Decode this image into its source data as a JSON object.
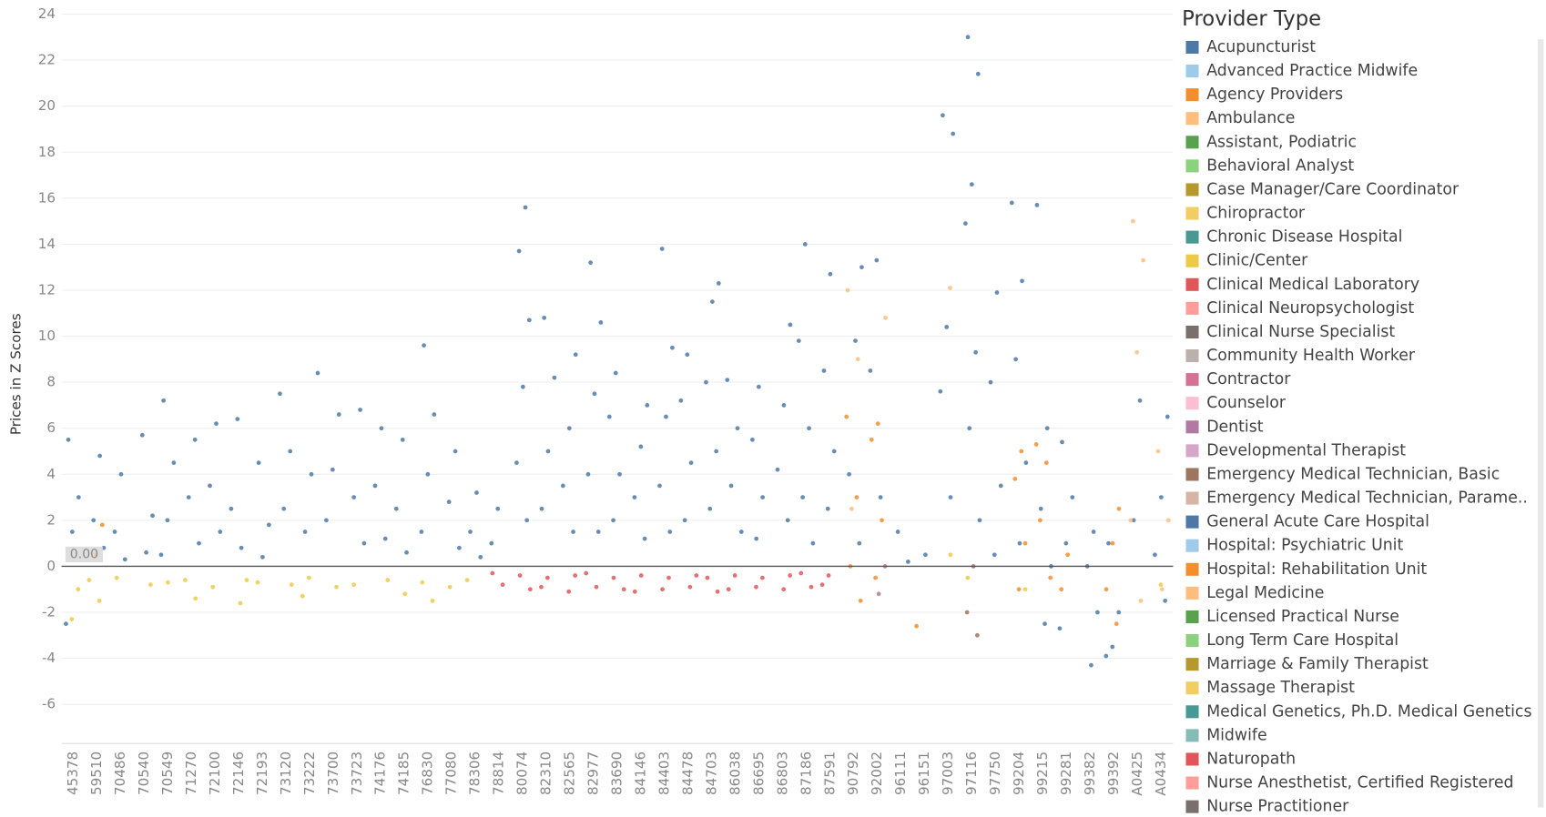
{
  "chart_data": {
    "type": "scatter",
    "y_label": "Prices in Z Scores",
    "legend_title": "Provider Type",
    "reference_line": {
      "value": 0,
      "label": "0.00"
    },
    "categories": [
      "45378",
      "59510",
      "70486",
      "70540",
      "70549",
      "71270",
      "72100",
      "72146",
      "72193",
      "73120",
      "73222",
      "73700",
      "73723",
      "74176",
      "74185",
      "76830",
      "77080",
      "78306",
      "78814",
      "80074",
      "82310",
      "82565",
      "82977",
      "83690",
      "84146",
      "84403",
      "84478",
      "84703",
      "86038",
      "86695",
      "86803",
      "87186",
      "87591",
      "90792",
      "92002",
      "96111",
      "96151",
      "97003",
      "97116",
      "97750",
      "99204",
      "99215",
      "99281",
      "99382",
      "99392",
      "A0425",
      "A0434"
    ],
    "ylim": [
      -7.7,
      24.4
    ],
    "yticks": [
      -6,
      -4,
      -2,
      0,
      2,
      4,
      6,
      8,
      10,
      12,
      14,
      16,
      18,
      20,
      22,
      24
    ],
    "grid": true,
    "series": [
      {
        "name": "Acupuncturist",
        "color": "#4e79a7",
        "x": [],
        "y": []
      },
      {
        "name": "Advanced Practice Midwife",
        "color": "#a0cbe8",
        "x": [],
        "y": []
      },
      {
        "name": "Agency Providers",
        "color": "#f28e2b",
        "x": [],
        "y": []
      },
      {
        "name": "Ambulance",
        "color": "#ffbe7d",
        "x": [],
        "y": []
      },
      {
        "name": "Assistant, Podiatric",
        "color": "#59a14f",
        "x": [],
        "y": []
      },
      {
        "name": "Behavioral Analyst",
        "color": "#8cd17d",
        "x": [],
        "y": []
      },
      {
        "name": "Case Manager/Care Coordinator",
        "color": "#b6992d",
        "x": [],
        "y": []
      },
      {
        "name": "Chiropractor",
        "color": "#f1ce63",
        "x": [],
        "y": []
      },
      {
        "name": "Chronic Disease Hospital",
        "color": "#499894",
        "x": [],
        "y": []
      },
      {
        "name": "Clinic/Center",
        "color": "#edc948",
        "x": [
          "45378",
          "45378",
          "59510",
          "59510",
          "70486",
          "70540",
          "70549",
          "71270",
          "71270",
          "72100",
          "72146",
          "72146",
          "72193",
          "73120",
          "73222",
          "73222",
          "73700",
          "73723",
          "74176",
          "74185",
          "76830",
          "76830",
          "77080",
          "78306",
          "97003",
          "97116",
          "99204",
          "A0434"
        ],
        "y": [
          -1,
          -2.3,
          -0.6,
          -1.5,
          -0.5,
          -0.8,
          -0.7,
          -0.6,
          -1.4,
          -0.9,
          -0.6,
          -1.6,
          -0.7,
          -0.8,
          -0.5,
          -1.3,
          -0.9,
          -0.8,
          -0.6,
          -1.2,
          -0.7,
          -1.5,
          -0.9,
          -0.6,
          0.5,
          -0.5,
          -1,
          -0.8
        ]
      },
      {
        "name": "Clinical Medical Laboratory",
        "color": "#e15759",
        "x": [
          "78814",
          "78814",
          "80074",
          "80074",
          "82310",
          "82310",
          "82565",
          "82565",
          "82977",
          "82977",
          "83690",
          "83690",
          "84146",
          "84146",
          "84403",
          "84403",
          "84478",
          "84478",
          "84703",
          "84703",
          "86038",
          "86038",
          "86695",
          "86695",
          "86803",
          "86803",
          "87186",
          "87186",
          "87591",
          "87591"
        ],
        "y": [
          -0.3,
          -0.8,
          -0.4,
          -1,
          -0.5,
          -0.9,
          -0.4,
          -1.1,
          -0.3,
          -0.9,
          -0.5,
          -1,
          -0.4,
          -1.1,
          -0.5,
          -1,
          -0.4,
          -0.9,
          -0.5,
          -1.1,
          -0.4,
          -1,
          -0.5,
          -0.9,
          -0.4,
          -1,
          -0.3,
          -0.9,
          -0.4,
          -0.8
        ]
      },
      {
        "name": "Clinical Neuropsychologist",
        "color": "#ff9d9a",
        "x": [],
        "y": []
      },
      {
        "name": "Clinical Nurse Specialist",
        "color": "#79706e",
        "x": [],
        "y": []
      },
      {
        "name": "Community Health Worker",
        "color": "#bab0ac",
        "x": [],
        "y": []
      },
      {
        "name": "Contractor",
        "color": "#d37295",
        "x": [],
        "y": []
      },
      {
        "name": "Counselor",
        "color": "#fabfd2",
        "x": [],
        "y": []
      },
      {
        "name": "Dentist",
        "color": "#b07aa1",
        "x": [
          "92002",
          "92002"
        ],
        "y": [
          0,
          -1.2
        ]
      },
      {
        "name": "Developmental Therapist",
        "color": "#d4a6c8",
        "x": [],
        "y": []
      },
      {
        "name": "Emergency Medical Technician, Basic",
        "color": "#9d7660",
        "x": [
          "97116",
          "97116",
          "97116"
        ],
        "y": [
          0,
          -2,
          -3
        ]
      },
      {
        "name": "Emergency Medical Technician, Parame..",
        "color": "#d7b5a6",
        "x": [],
        "y": []
      },
      {
        "name": "General Acute Care Hospital",
        "color": "#4e79a7",
        "x": [
          "45378",
          "45378",
          "45378",
          "45378",
          "59510",
          "59510",
          "59510",
          "70486",
          "70486",
          "70486",
          "70540",
          "70540",
          "70540",
          "70549",
          "70549",
          "70549",
          "70549",
          "71270",
          "71270",
          "71270",
          "72100",
          "72100",
          "72100",
          "72146",
          "72146",
          "72146",
          "72193",
          "72193",
          "72193",
          "73120",
          "73120",
          "73120",
          "73222",
          "73222",
          "73222",
          "73700",
          "73700",
          "73700",
          "73723",
          "73723",
          "73723",
          "74176",
          "74176",
          "74176",
          "74185",
          "74185",
          "74185",
          "76830",
          "76830",
          "76830",
          "76830",
          "77080",
          "77080",
          "77080",
          "78306",
          "78306",
          "78306",
          "78814",
          "78814",
          "80074",
          "80074",
          "80074",
          "80074",
          "80074",
          "80074",
          "82310",
          "82310",
          "82310",
          "82310",
          "82565",
          "82565",
          "82565",
          "82565",
          "82977",
          "82977",
          "82977",
          "82977",
          "82977",
          "83690",
          "83690",
          "83690",
          "83690",
          "84146",
          "84146",
          "84146",
          "84146",
          "84403",
          "84403",
          "84403",
          "84403",
          "84403",
          "84478",
          "84478",
          "84478",
          "84478",
          "84703",
          "84703",
          "84703",
          "84703",
          "84703",
          "86038",
          "86038",
          "86038",
          "86038",
          "86695",
          "86695",
          "86695",
          "86695",
          "86803",
          "86803",
          "86803",
          "86803",
          "87186",
          "87186",
          "87186",
          "87186",
          "87186",
          "87591",
          "87591",
          "87591",
          "87591",
          "90792",
          "90792",
          "90792",
          "90792",
          "92002",
          "92002",
          "92002",
          "96111",
          "96111",
          "96151",
          "97003",
          "97003",
          "97003",
          "97003",
          "97003",
          "97116",
          "97116",
          "97116",
          "97116",
          "97116",
          "97116",
          "97116",
          "97750",
          "97750",
          "97750",
          "97750",
          "99204",
          "99204",
          "99204",
          "99204",
          "99204",
          "99215",
          "99215",
          "99215",
          "99215",
          "99215",
          "99281",
          "99281",
          "99281",
          "99281",
          "99382",
          "99382",
          "99382",
          "99382",
          "99392",
          "99392",
          "99392",
          "99392",
          "A0425",
          "A0425",
          "A0434",
          "A0434",
          "A0434",
          "A0434"
        ],
        "y": [
          5.5,
          3,
          1.5,
          -2.5,
          4.8,
          2,
          0.8,
          4,
          1.5,
          0.3,
          5.7,
          2.2,
          0.6,
          7.2,
          4.5,
          2,
          0.5,
          5.5,
          3,
          1,
          6.2,
          3.5,
          1.5,
          6.4,
          2.5,
          0.8,
          4.5,
          1.8,
          0.4,
          7.5,
          5,
          2.5,
          8.4,
          4,
          1.5,
          6.6,
          4.2,
          2,
          6.8,
          3,
          1,
          6,
          3.5,
          1.2,
          5.5,
          2.5,
          0.6,
          9.6,
          6.6,
          4,
          1.5,
          5,
          2.8,
          0.8,
          3.2,
          1.5,
          0.4,
          2.5,
          1,
          15.6,
          13.7,
          10.7,
          7.8,
          4.5,
          2,
          10.8,
          8.2,
          5,
          2.5,
          9.2,
          6,
          3.5,
          1.5,
          13.2,
          10.6,
          7.5,
          4,
          1.5,
          8.4,
          6.5,
          4,
          2,
          7,
          5.2,
          3,
          1.2,
          13.8,
          9.5,
          6.5,
          3.5,
          1.5,
          9.2,
          7.2,
          4.5,
          2,
          12.3,
          11.5,
          8,
          5,
          2.5,
          8.1,
          6,
          3.5,
          1.5,
          7.8,
          5.5,
          3,
          1.2,
          10.5,
          7,
          4.2,
          2,
          14,
          9.8,
          6,
          3,
          1,
          12.7,
          8.5,
          5,
          2.5,
          13,
          9.8,
          4,
          1,
          13.3,
          8.5,
          3,
          1.5,
          0.2,
          0.5,
          19.6,
          18.8,
          10.4,
          7.6,
          3,
          23,
          21.4,
          16.6,
          14.9,
          9.3,
          6,
          2,
          11.9,
          8,
          3.5,
          0.5,
          15.8,
          12.4,
          9,
          4.5,
          1,
          15.7,
          6,
          2.5,
          0,
          -2.5,
          5.4,
          3,
          1,
          -2.7,
          1.5,
          0,
          -2,
          -4.3,
          1,
          -2,
          -3.5,
          -3.9,
          7.2,
          2,
          6.5,
          3,
          0.5,
          -1.5
        ]
      },
      {
        "name": "Hospital: Psychiatric Unit",
        "color": "#a0cbe8",
        "x": [],
        "y": []
      },
      {
        "name": "Hospital: Rehabilitation Unit",
        "color": "#f28e2b",
        "x": [
          "59510",
          "59510",
          "90792",
          "90792",
          "90792",
          "90792",
          "92002",
          "92002",
          "92002",
          "92002",
          "96151",
          "99204",
          "99204",
          "99204",
          "99204",
          "99215",
          "99215",
          "99215",
          "99215",
          "99281",
          "99281",
          "99392",
          "99392",
          "99392",
          "99392"
        ],
        "y": [
          1.8,
          0.5,
          6.5,
          3,
          0,
          -1.5,
          6.2,
          5.5,
          2,
          -0.5,
          -2.6,
          5,
          3.8,
          1,
          -1,
          5.3,
          4.5,
          2,
          -0.5,
          0.5,
          -1,
          2.5,
          1,
          -1,
          -2.5
        ]
      },
      {
        "name": "Legal Medicine",
        "color": "#ffbe7d",
        "x": [
          "90792",
          "90792",
          "90792",
          "92002",
          "97003",
          "A0425",
          "A0425",
          "A0425",
          "A0425",
          "A0425",
          "A0434",
          "A0434",
          "A0434"
        ],
        "y": [
          12,
          9,
          2.5,
          10.8,
          12.1,
          15,
          13.3,
          9.3,
          2,
          -1.5,
          5,
          2,
          -1
        ]
      },
      {
        "name": "Licensed Practical Nurse",
        "color": "#59a14f",
        "x": [],
        "y": []
      },
      {
        "name": "Long Term Care Hospital",
        "color": "#8cd17d",
        "x": [],
        "y": []
      },
      {
        "name": "Marriage & Family Therapist",
        "color": "#b6992d",
        "x": [],
        "y": []
      },
      {
        "name": "Massage Therapist",
        "color": "#f1ce63",
        "x": [],
        "y": []
      },
      {
        "name": "Medical Genetics, Ph.D. Medical Genetics",
        "color": "#499894",
        "x": [],
        "y": []
      },
      {
        "name": "Midwife",
        "color": "#86bcb6",
        "x": [],
        "y": []
      },
      {
        "name": "Naturopath",
        "color": "#e15759",
        "x": [],
        "y": []
      },
      {
        "name": "Nurse Anesthetist, Certified Registered",
        "color": "#ff9d9a",
        "x": [],
        "y": []
      },
      {
        "name": "Nurse Practitioner",
        "color": "#79706e",
        "x": [],
        "y": []
      }
    ]
  }
}
